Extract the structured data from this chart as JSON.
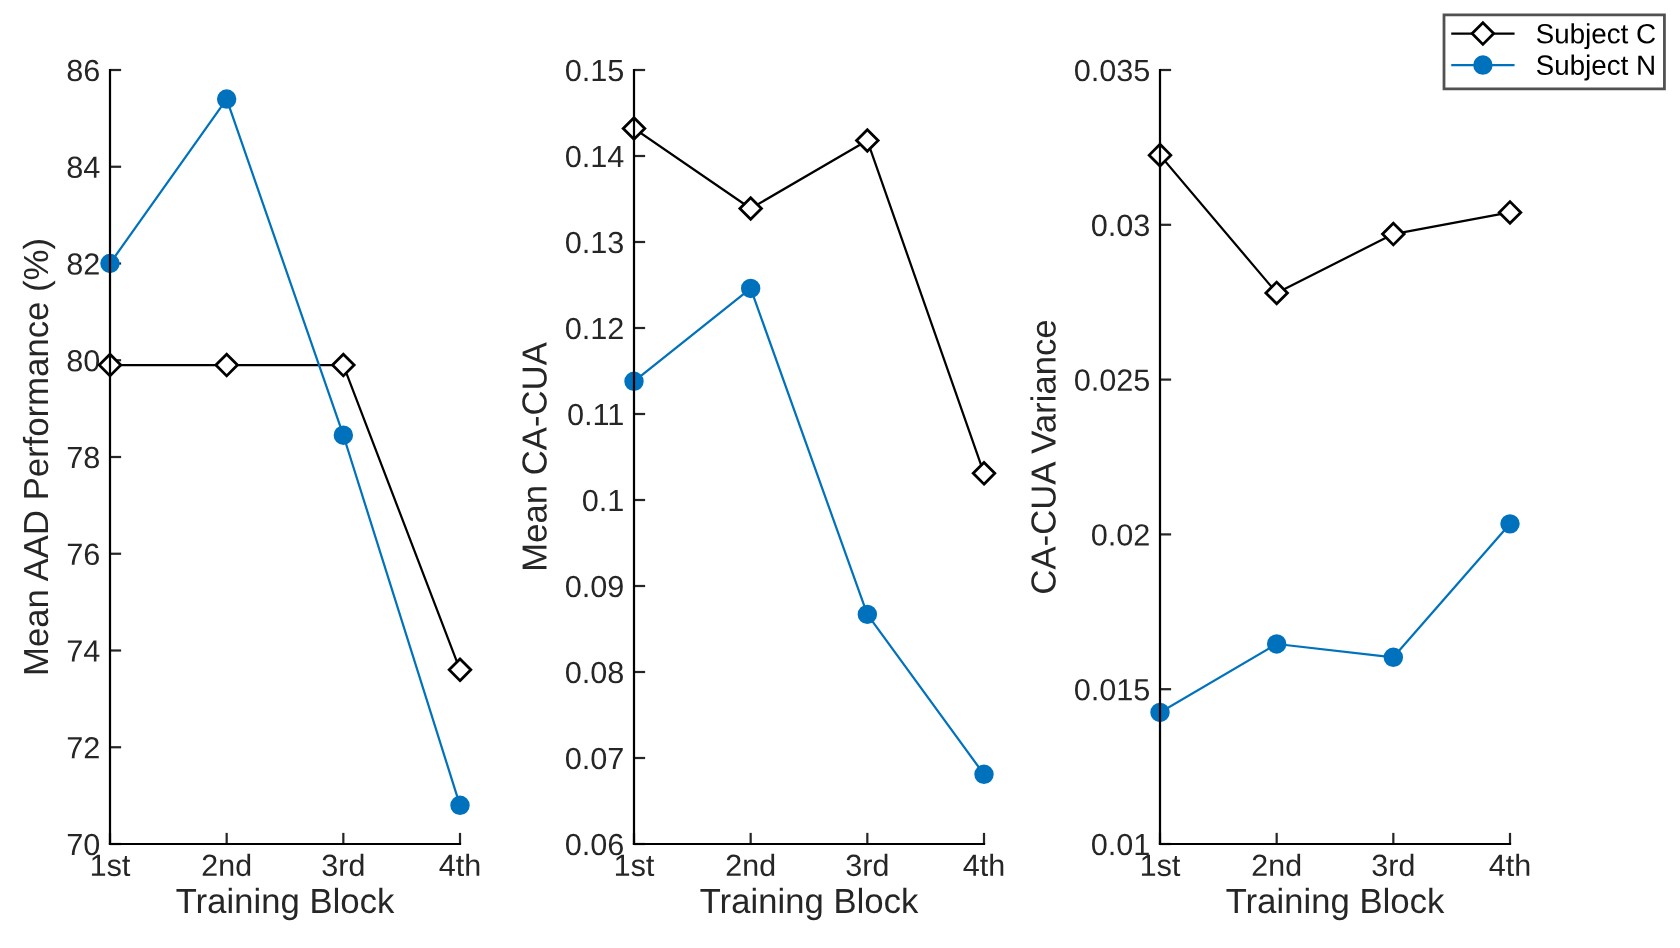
{
  "chart_data": [
    {
      "type": "line",
      "xlabel": "Training Block",
      "ylabel": "Mean AAD Performance (%)",
      "categories": [
        "1st",
        "2nd",
        "3rd",
        "4th"
      ],
      "ylim": [
        70,
        86
      ],
      "yticks": [
        70,
        72,
        74,
        76,
        78,
        80,
        82,
        84,
        86
      ],
      "line_style": "solid",
      "legend": "top right",
      "series": [
        {
          "name": "Subject C",
          "color": "#000000",
          "marker": "diamond",
          "values": [
            79.9,
            79.9,
            79.9,
            73.6
          ]
        },
        {
          "name": "Subject N",
          "color": "#0072bd",
          "marker": "circle",
          "values": [
            82.0,
            85.4,
            78.45,
            70.8
          ]
        }
      ]
    },
    {
      "type": "line",
      "xlabel": "Training Block",
      "ylabel": "Mean CA-CUA",
      "categories": [
        "1st",
        "2nd",
        "3rd",
        "4th"
      ],
      "ylim": [
        0.06,
        0.15
      ],
      "yticks": [
        0.06,
        0.07,
        0.08,
        0.09,
        0.1,
        0.11,
        0.12,
        0.13,
        0.14,
        0.15
      ],
      "line_style": "solid",
      "series": [
        {
          "color": "#000000",
          "marker": "diamond",
          "values": [
            0.1432,
            0.1339,
            0.1418,
            0.1031
          ]
        },
        {
          "color": "#0072bd",
          "marker": "circle",
          "values": [
            0.1138,
            0.1246,
            0.0867,
            0.0681
          ]
        }
      ]
    },
    {
      "type": "line",
      "xlabel": "Training Block",
      "ylabel": "CA-CUA Variance",
      "categories": [
        "1st",
        "2nd",
        "3rd",
        "4th"
      ],
      "ylim": [
        0.01,
        0.035
      ],
      "yticks": [
        0.01,
        0.015,
        0.02,
        0.025,
        0.03,
        0.035
      ],
      "line_style": "solid",
      "series": [
        {
          "color": "#000000",
          "marker": "diamond",
          "values": [
            0.03225,
            0.0278,
            0.0297,
            0.0304
          ]
        },
        {
          "color": "#0072bd",
          "marker": "circle",
          "values": [
            0.01425,
            0.01646,
            0.01603,
            0.02034
          ]
        }
      ]
    }
  ]
}
